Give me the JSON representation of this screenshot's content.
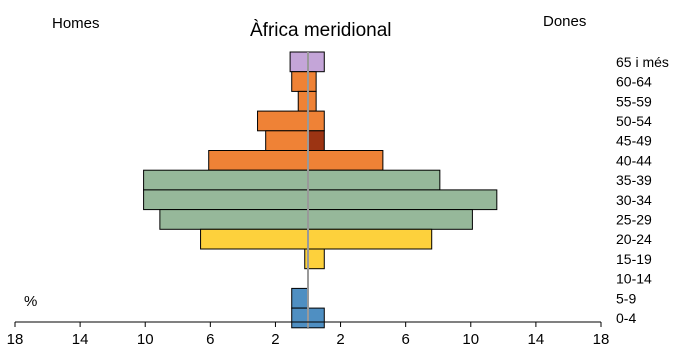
{
  "chart_data": {
    "type": "bar",
    "orientation": "horizontal",
    "subtype": "population-pyramid",
    "title": "Àfrica meridional",
    "left_label": "Homes",
    "right_label": "Dones",
    "unit_label": "%",
    "categories": [
      "0-4",
      "5-9",
      "10-14",
      "15-19",
      "20-24",
      "25-29",
      "30-34",
      "35-39",
      "40-44",
      "45-49",
      "50-54",
      "55-59",
      "60-64",
      "65 i més"
    ],
    "series": [
      {
        "name": "Homes",
        "values": [
          1.0,
          1.0,
          0.0,
          0.2,
          6.6,
          9.1,
          10.1,
          10.1,
          6.1,
          2.6,
          3.1,
          0.6,
          1.0,
          1.1
        ]
      },
      {
        "name": "Dones",
        "values": [
          1.0,
          0.0,
          0.0,
          1.0,
          7.6,
          10.1,
          11.6,
          8.1,
          4.6,
          1.0,
          1.0,
          0.5,
          0.5,
          1.0
        ]
      }
    ],
    "group_colors": [
      "#4f8fc2",
      "#4f8fc2",
      "#4f8fc2",
      "#fdd13c",
      "#fdd13c",
      "#96b89a",
      "#96b89a",
      "#96b89a",
      "#ef8236",
      "#ef8236",
      "#ef8236",
      "#ef8236",
      "#ef8236",
      "#c4a5d8"
    ],
    "highlight": {
      "category": "45-49",
      "side": "Dones",
      "color": "#9c3413"
    },
    "center_line_color": "#999999",
    "xlim": [
      -18,
      18
    ],
    "xticks": [
      -18,
      -14,
      -10,
      -6,
      -2,
      2,
      6,
      10,
      14,
      18
    ],
    "xtick_labels": [
      "18",
      "14",
      "10",
      "6",
      "2",
      "2",
      "6",
      "10",
      "14",
      "18"
    ],
    "grid": false
  }
}
